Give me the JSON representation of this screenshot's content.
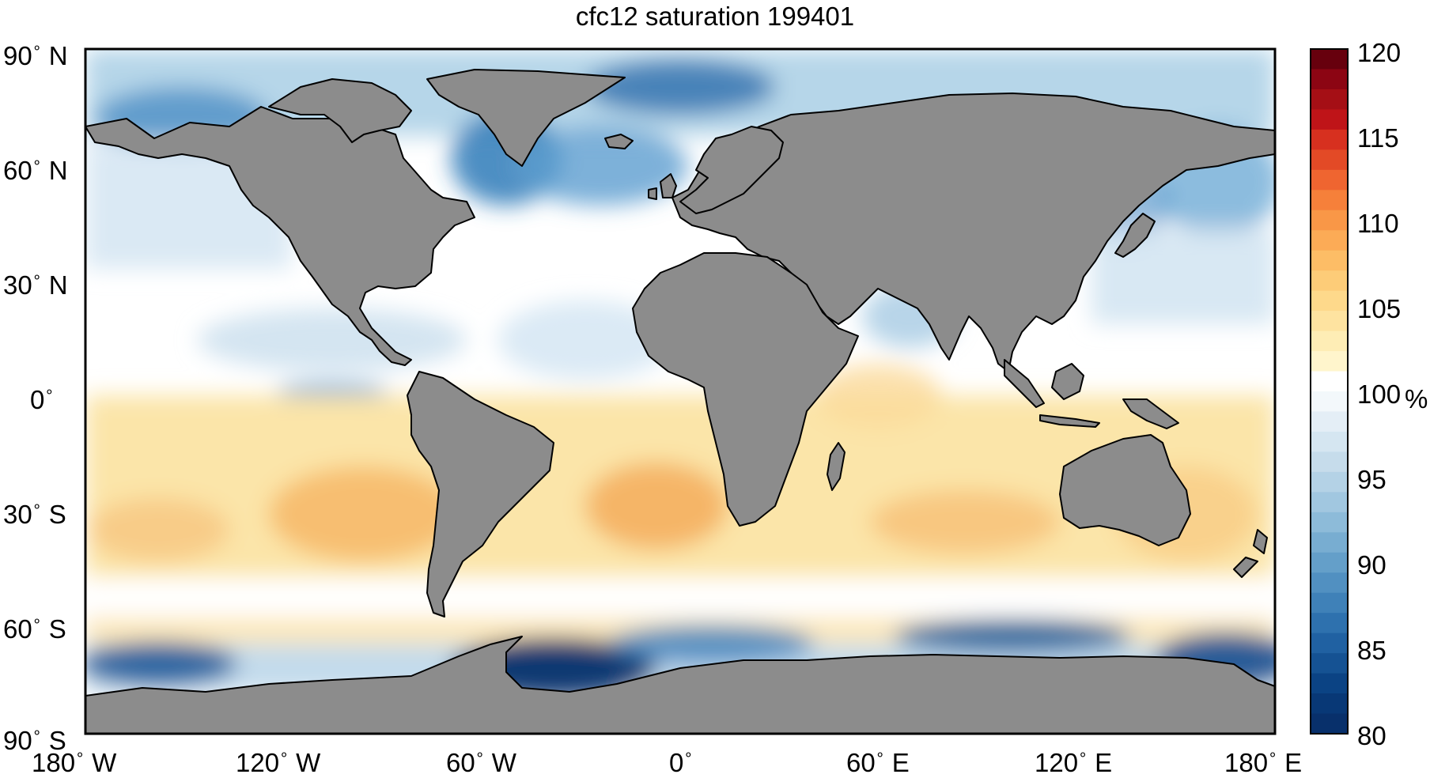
{
  "title": "cfc12 saturation 199401",
  "y_axis_ticks": [
    {
      "label": "90",
      "hemi": "N",
      "lat": 90
    },
    {
      "label": "60",
      "hemi": "N",
      "lat": 60
    },
    {
      "label": "30",
      "hemi": "N",
      "lat": 30
    },
    {
      "label": "0",
      "hemi": "",
      "lat": 0
    },
    {
      "label": "30",
      "hemi": "S",
      "lat": -30
    },
    {
      "label": "60",
      "hemi": "S",
      "lat": -60
    },
    {
      "label": "90",
      "hemi": "S",
      "lat": -90
    }
  ],
  "x_axis_ticks": [
    {
      "label": "180",
      "hemi": "W",
      "lon": -180
    },
    {
      "label": "120",
      "hemi": "W",
      "lon": -120
    },
    {
      "label": "60",
      "hemi": "W",
      "lon": -60
    },
    {
      "label": "0",
      "hemi": "",
      "lon": 0
    },
    {
      "label": "60",
      "hemi": "E",
      "lon": 60
    },
    {
      "label": "120",
      "hemi": "E",
      "lon": 120
    },
    {
      "label": "180",
      "hemi": "E",
      "lon": 180
    }
  ],
  "colorbar": {
    "min": 80,
    "max": 120,
    "unit": "%",
    "ticks": [
      "80",
      "85",
      "90",
      "95",
      "100",
      "105",
      "110",
      "115",
      "120"
    ]
  },
  "colors": {
    "land": "#8c8c8c",
    "coast": "#000000",
    "ocean_neutral": "#ffffff",
    "low": "#08306b",
    "high": "#67000d"
  }
}
